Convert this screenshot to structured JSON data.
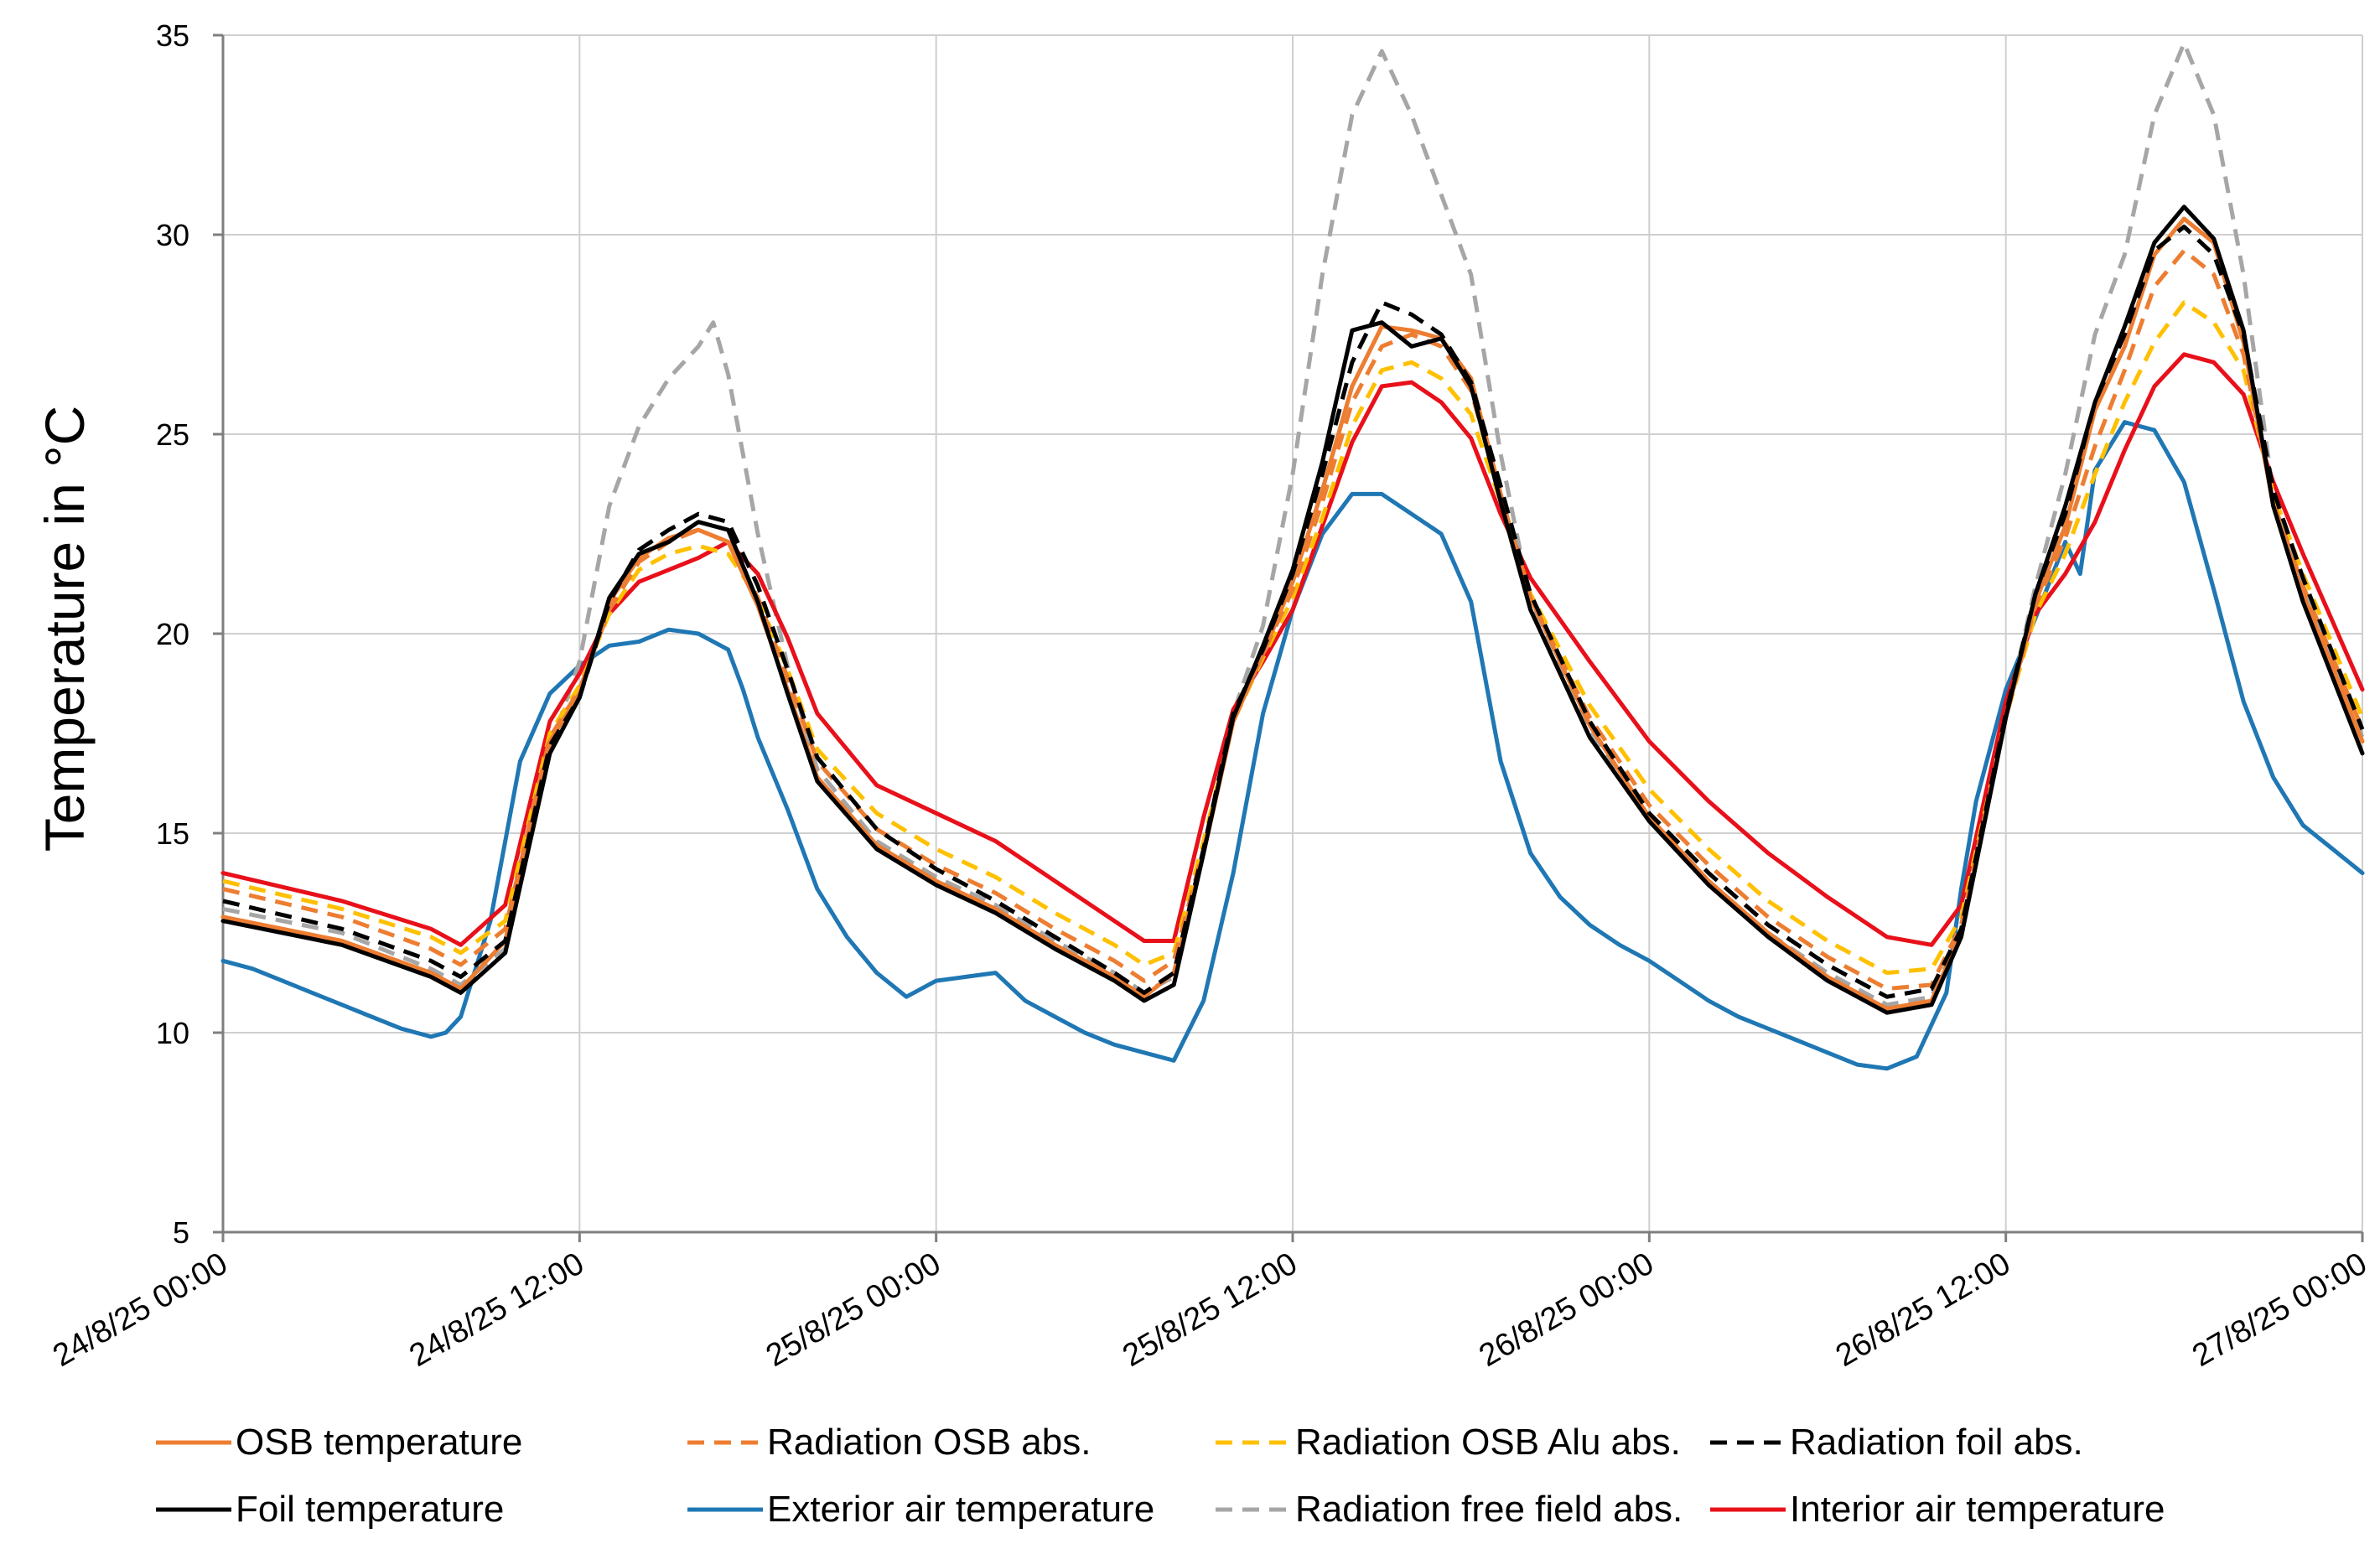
{
  "chart_data": {
    "type": "line",
    "title": "",
    "xlabel": "",
    "ylabel": "Temperature in °C",
    "ylim": [
      5,
      35
    ],
    "yticks": [
      5,
      10,
      15,
      20,
      25,
      30,
      35
    ],
    "xlim_hours": [
      0,
      72
    ],
    "xticks": [
      {
        "hour": 0,
        "label": "24/8/25 00:00"
      },
      {
        "hour": 12,
        "label": "24/8/25 12:00"
      },
      {
        "hour": 24,
        "label": "25/8/25 00:00"
      },
      {
        "hour": 36,
        "label": "25/8/25 12:00"
      },
      {
        "hour": 48,
        "label": "26/8/25 00:00"
      },
      {
        "hour": 60,
        "label": "26/8/25 12:00"
      },
      {
        "hour": 72,
        "label": "27/8/25 00:00"
      }
    ],
    "grid": true,
    "legend_position": "bottom",
    "x_unit": "hours since 24/8/25 00:00",
    "series": [
      {
        "name": "OSB temperature",
        "color": "#ED7D31",
        "dash": "solid",
        "x": [
          0,
          4,
          7,
          8,
          9.5,
          11,
          12,
          13,
          14,
          15,
          16,
          17,
          18,
          19,
          20,
          22,
          24,
          26,
          28,
          30,
          31,
          32,
          33,
          34,
          35,
          36,
          37,
          38,
          39,
          40,
          41,
          42,
          43,
          44,
          46,
          48,
          50,
          52,
          54,
          56,
          57.5,
          58.5,
          60,
          61,
          62,
          63,
          64,
          65,
          66,
          67,
          68,
          69,
          70,
          72
        ],
        "y": [
          12.9,
          12.3,
          11.5,
          11.1,
          12.3,
          17.3,
          18.5,
          20.8,
          21.9,
          22.4,
          22.6,
          22.3,
          20.7,
          18.6,
          16.4,
          14.7,
          13.8,
          13.1,
          12.2,
          11.4,
          10.9,
          11.5,
          14.5,
          17.8,
          19.5,
          21.3,
          23.6,
          26.2,
          27.7,
          27.6,
          27.4,
          26.4,
          23.5,
          20.9,
          17.7,
          15.4,
          13.8,
          12.5,
          11.4,
          10.6,
          10.8,
          12.5,
          17.9,
          20.8,
          22.7,
          25.6,
          27.2,
          29.5,
          30.4,
          29.8,
          27.3,
          23.2,
          21.0,
          17.3
        ]
      },
      {
        "name": "Radiation OSB abs.",
        "color": "#ED7D31",
        "dash": "dashed",
        "x": [
          0,
          4,
          7,
          8,
          9.5,
          11,
          12,
          13,
          14,
          15,
          16,
          17,
          18,
          19,
          20,
          22,
          24,
          26,
          28,
          30,
          31,
          32,
          33,
          34,
          35,
          36,
          37,
          38,
          39,
          40,
          41,
          42,
          43,
          44,
          46,
          48,
          50,
          52,
          54,
          56,
          57.5,
          58.5,
          60,
          61,
          62,
          63,
          64,
          65,
          66,
          67,
          68,
          69,
          70,
          72
        ],
        "y": [
          13.6,
          12.9,
          12.1,
          11.7,
          12.6,
          17.4,
          18.6,
          20.6,
          21.8,
          22.3,
          22.6,
          22.3,
          20.9,
          18.9,
          16.8,
          15.1,
          14.2,
          13.5,
          12.6,
          11.8,
          11.3,
          11.8,
          14.6,
          17.8,
          19.5,
          21.1,
          23.3,
          25.8,
          27.2,
          27.5,
          27.2,
          26.1,
          23.4,
          20.9,
          17.9,
          15.7,
          14.2,
          12.9,
          11.9,
          11.1,
          11.2,
          12.7,
          17.9,
          20.7,
          22.4,
          24.7,
          26.6,
          28.7,
          29.6,
          29.0,
          27.0,
          23.3,
          21.2,
          17.6
        ]
      },
      {
        "name": "Radiation OSB Alu abs.",
        "color": "#FFC000",
        "dash": "dashed",
        "x": [
          0,
          4,
          7,
          8,
          9.5,
          11,
          12,
          13,
          14,
          15,
          16,
          17,
          18,
          19,
          20,
          22,
          24,
          26,
          28,
          30,
          31,
          32,
          33,
          34,
          35,
          36,
          37,
          38,
          39,
          40,
          41,
          42,
          43,
          44,
          46,
          48,
          50,
          52,
          54,
          56,
          57.5,
          58.5,
          60,
          61,
          62,
          63,
          64,
          65,
          66,
          67,
          68,
          69,
          70,
          72
        ],
        "y": [
          13.8,
          13.1,
          12.4,
          12.0,
          12.8,
          17.5,
          18.7,
          20.5,
          21.6,
          22.0,
          22.2,
          22.0,
          20.9,
          19.1,
          17.1,
          15.5,
          14.6,
          13.9,
          13.0,
          12.2,
          11.7,
          12.0,
          14.8,
          17.8,
          19.4,
          20.9,
          22.9,
          25.2,
          26.6,
          26.8,
          26.4,
          25.5,
          23.3,
          21.0,
          18.2,
          16.1,
          14.6,
          13.3,
          12.3,
          11.5,
          11.6,
          12.9,
          17.9,
          20.5,
          22.0,
          24.0,
          25.8,
          27.3,
          28.3,
          27.8,
          26.6,
          23.5,
          21.5,
          17.9
        ]
      },
      {
        "name": "Radiation foil abs.",
        "color": "#000000",
        "dash": "dashed",
        "x": [
          0,
          4,
          7,
          8,
          9.5,
          11,
          12,
          13,
          14,
          15,
          16,
          17,
          18,
          19,
          20,
          22,
          24,
          26,
          28,
          30,
          31,
          32,
          33,
          34,
          35,
          36,
          37,
          38,
          39,
          40,
          41,
          42,
          43,
          44,
          46,
          48,
          50,
          52,
          54,
          56,
          57.5,
          58.5,
          60,
          61,
          62,
          63,
          64,
          65,
          66,
          67,
          68,
          69,
          70,
          72
        ],
        "y": [
          13.3,
          12.6,
          11.8,
          11.4,
          12.3,
          17.2,
          18.4,
          20.8,
          22.1,
          22.6,
          23.0,
          22.8,
          21.2,
          19.1,
          16.9,
          15.1,
          14.1,
          13.3,
          12.4,
          11.5,
          11.0,
          11.5,
          14.6,
          18.0,
          19.6,
          21.5,
          24.0,
          26.8,
          28.3,
          28.0,
          27.5,
          26.3,
          23.7,
          21.0,
          17.8,
          15.5,
          14.0,
          12.7,
          11.7,
          10.9,
          11.1,
          12.6,
          18.0,
          21.0,
          23.0,
          25.8,
          27.5,
          29.6,
          30.2,
          29.5,
          27.5,
          23.6,
          21.4,
          17.6
        ]
      },
      {
        "name": "Foil temperature",
        "color": "#000000",
        "dash": "solid",
        "x": [
          0,
          4,
          7,
          8,
          9.5,
          11,
          12,
          13,
          14,
          15,
          16,
          17,
          18,
          19,
          20,
          22,
          24,
          26,
          28,
          30,
          31,
          32,
          33,
          34,
          35,
          36,
          37,
          38,
          39,
          40,
          41,
          42,
          43,
          44,
          46,
          48,
          50,
          52,
          54,
          56,
          57.5,
          58.5,
          60,
          61,
          62,
          63,
          64,
          65,
          66,
          67,
          68,
          69,
          70,
          72
        ],
        "y": [
          12.8,
          12.2,
          11.4,
          11.0,
          12.0,
          17.0,
          18.4,
          20.9,
          22.0,
          22.3,
          22.8,
          22.6,
          20.8,
          18.5,
          16.3,
          14.6,
          13.7,
          13.0,
          12.1,
          11.3,
          10.8,
          11.2,
          14.5,
          17.9,
          19.7,
          21.6,
          24.3,
          27.6,
          27.8,
          27.2,
          27.4,
          26.2,
          23.3,
          20.6,
          17.4,
          15.3,
          13.7,
          12.4,
          11.3,
          10.5,
          10.7,
          12.4,
          17.9,
          21.0,
          23.2,
          25.8,
          27.7,
          29.8,
          30.7,
          29.9,
          27.6,
          23.2,
          20.8,
          17.0
        ]
      },
      {
        "name": "Exterior air temperature",
        "color": "#1F77B4",
        "dash": "solid",
        "x": [
          0,
          1,
          2,
          3,
          4,
          5,
          6,
          7,
          7.5,
          8,
          9,
          10,
          11,
          12,
          13,
          14,
          15,
          16,
          17,
          17.5,
          18,
          19,
          20,
          21,
          22,
          23,
          24,
          25,
          26,
          27,
          28,
          29,
          30,
          31,
          32,
          33,
          34,
          35,
          36,
          37,
          38,
          39,
          40,
          41,
          42,
          43,
          44,
          45,
          46,
          47,
          48,
          49,
          50,
          51,
          52,
          53,
          54,
          55,
          56,
          57,
          58,
          58.5,
          59,
          60,
          61,
          62,
          62.5,
          63,
          64,
          65,
          66,
          67,
          68,
          69,
          70,
          71,
          72
        ],
        "y": [
          11.8,
          11.6,
          11.3,
          11.0,
          10.7,
          10.4,
          10.1,
          9.9,
          10.0,
          10.4,
          12.8,
          16.8,
          18.5,
          19.2,
          19.7,
          19.8,
          20.1,
          20.0,
          19.6,
          18.6,
          17.4,
          15.6,
          13.6,
          12.4,
          11.5,
          10.9,
          11.3,
          11.4,
          11.5,
          10.8,
          10.4,
          10.0,
          9.7,
          9.5,
          9.3,
          10.8,
          14.0,
          18.0,
          20.6,
          22.5,
          23.5,
          23.5,
          23.0,
          22.5,
          20.8,
          16.8,
          14.5,
          13.4,
          12.7,
          12.2,
          11.8,
          11.3,
          10.8,
          10.4,
          10.1,
          9.8,
          9.5,
          9.2,
          9.1,
          9.4,
          11.0,
          13.6,
          15.8,
          18.6,
          20.4,
          22.3,
          21.5,
          24.1,
          25.3,
          25.1,
          23.8,
          21.1,
          18.3,
          16.4,
          15.2,
          14.6,
          14.0
        ]
      },
      {
        "name": "Radiation free field abs.",
        "color": "#A6A6A6",
        "dash": "dashed",
        "x": [
          0,
          4,
          7,
          8,
          9.5,
          11,
          12,
          13,
          14,
          15,
          16,
          16.5,
          17,
          18,
          19,
          20,
          22,
          24,
          26,
          28,
          30,
          31,
          32,
          33,
          34,
          35,
          36,
          37,
          38,
          39,
          40,
          41,
          42,
          43,
          44,
          46,
          48,
          50,
          52,
          54,
          56,
          57.5,
          58.5,
          60,
          61,
          62,
          63,
          64,
          65,
          66,
          67,
          68,
          69,
          70,
          72
        ],
        "y": [
          13.1,
          12.5,
          11.6,
          11.2,
          12.1,
          17.1,
          19.3,
          23.2,
          25.2,
          26.4,
          27.2,
          27.8,
          26.5,
          22.5,
          19.2,
          16.6,
          14.8,
          13.9,
          13.2,
          12.3,
          11.5,
          11.0,
          11.4,
          14.6,
          18.0,
          20.2,
          24.0,
          29.0,
          33.0,
          34.6,
          33.0,
          31.0,
          29.0,
          24.5,
          20.8,
          17.5,
          15.4,
          13.8,
          12.5,
          11.5,
          10.7,
          10.9,
          12.5,
          17.9,
          21.2,
          24.0,
          27.5,
          29.5,
          33.0,
          34.8,
          33.0,
          29.0,
          23.5,
          21.2,
          17.4
        ]
      },
      {
        "name": "Interior air temperature",
        "color": "#E8101A",
        "dash": "solid",
        "x": [
          0,
          4,
          7,
          8,
          9.5,
          11,
          12,
          13,
          14,
          15,
          16,
          17,
          18,
          19,
          20,
          22,
          24,
          26,
          28,
          30,
          31,
          32,
          33,
          34,
          35,
          36,
          37,
          38,
          39,
          40,
          41,
          42,
          43,
          44,
          46,
          48,
          50,
          52,
          54,
          56,
          57.5,
          58.5,
          60,
          61,
          62,
          63,
          64,
          65,
          66,
          67,
          68,
          69,
          70,
          72
        ],
        "y": [
          14.0,
          13.3,
          12.6,
          12.2,
          13.2,
          17.8,
          19.0,
          20.5,
          21.3,
          21.6,
          21.9,
          22.3,
          21.5,
          19.9,
          18.0,
          16.2,
          15.5,
          14.8,
          13.8,
          12.8,
          12.3,
          12.3,
          15.4,
          18.1,
          19.3,
          20.6,
          22.7,
          24.8,
          26.2,
          26.3,
          25.8,
          24.9,
          23.0,
          21.4,
          19.3,
          17.3,
          15.8,
          14.5,
          13.4,
          12.4,
          12.2,
          13.2,
          18.3,
          20.5,
          21.5,
          22.8,
          24.6,
          26.2,
          27.0,
          26.8,
          26.0,
          23.8,
          22.0,
          18.6
        ]
      }
    ]
  }
}
